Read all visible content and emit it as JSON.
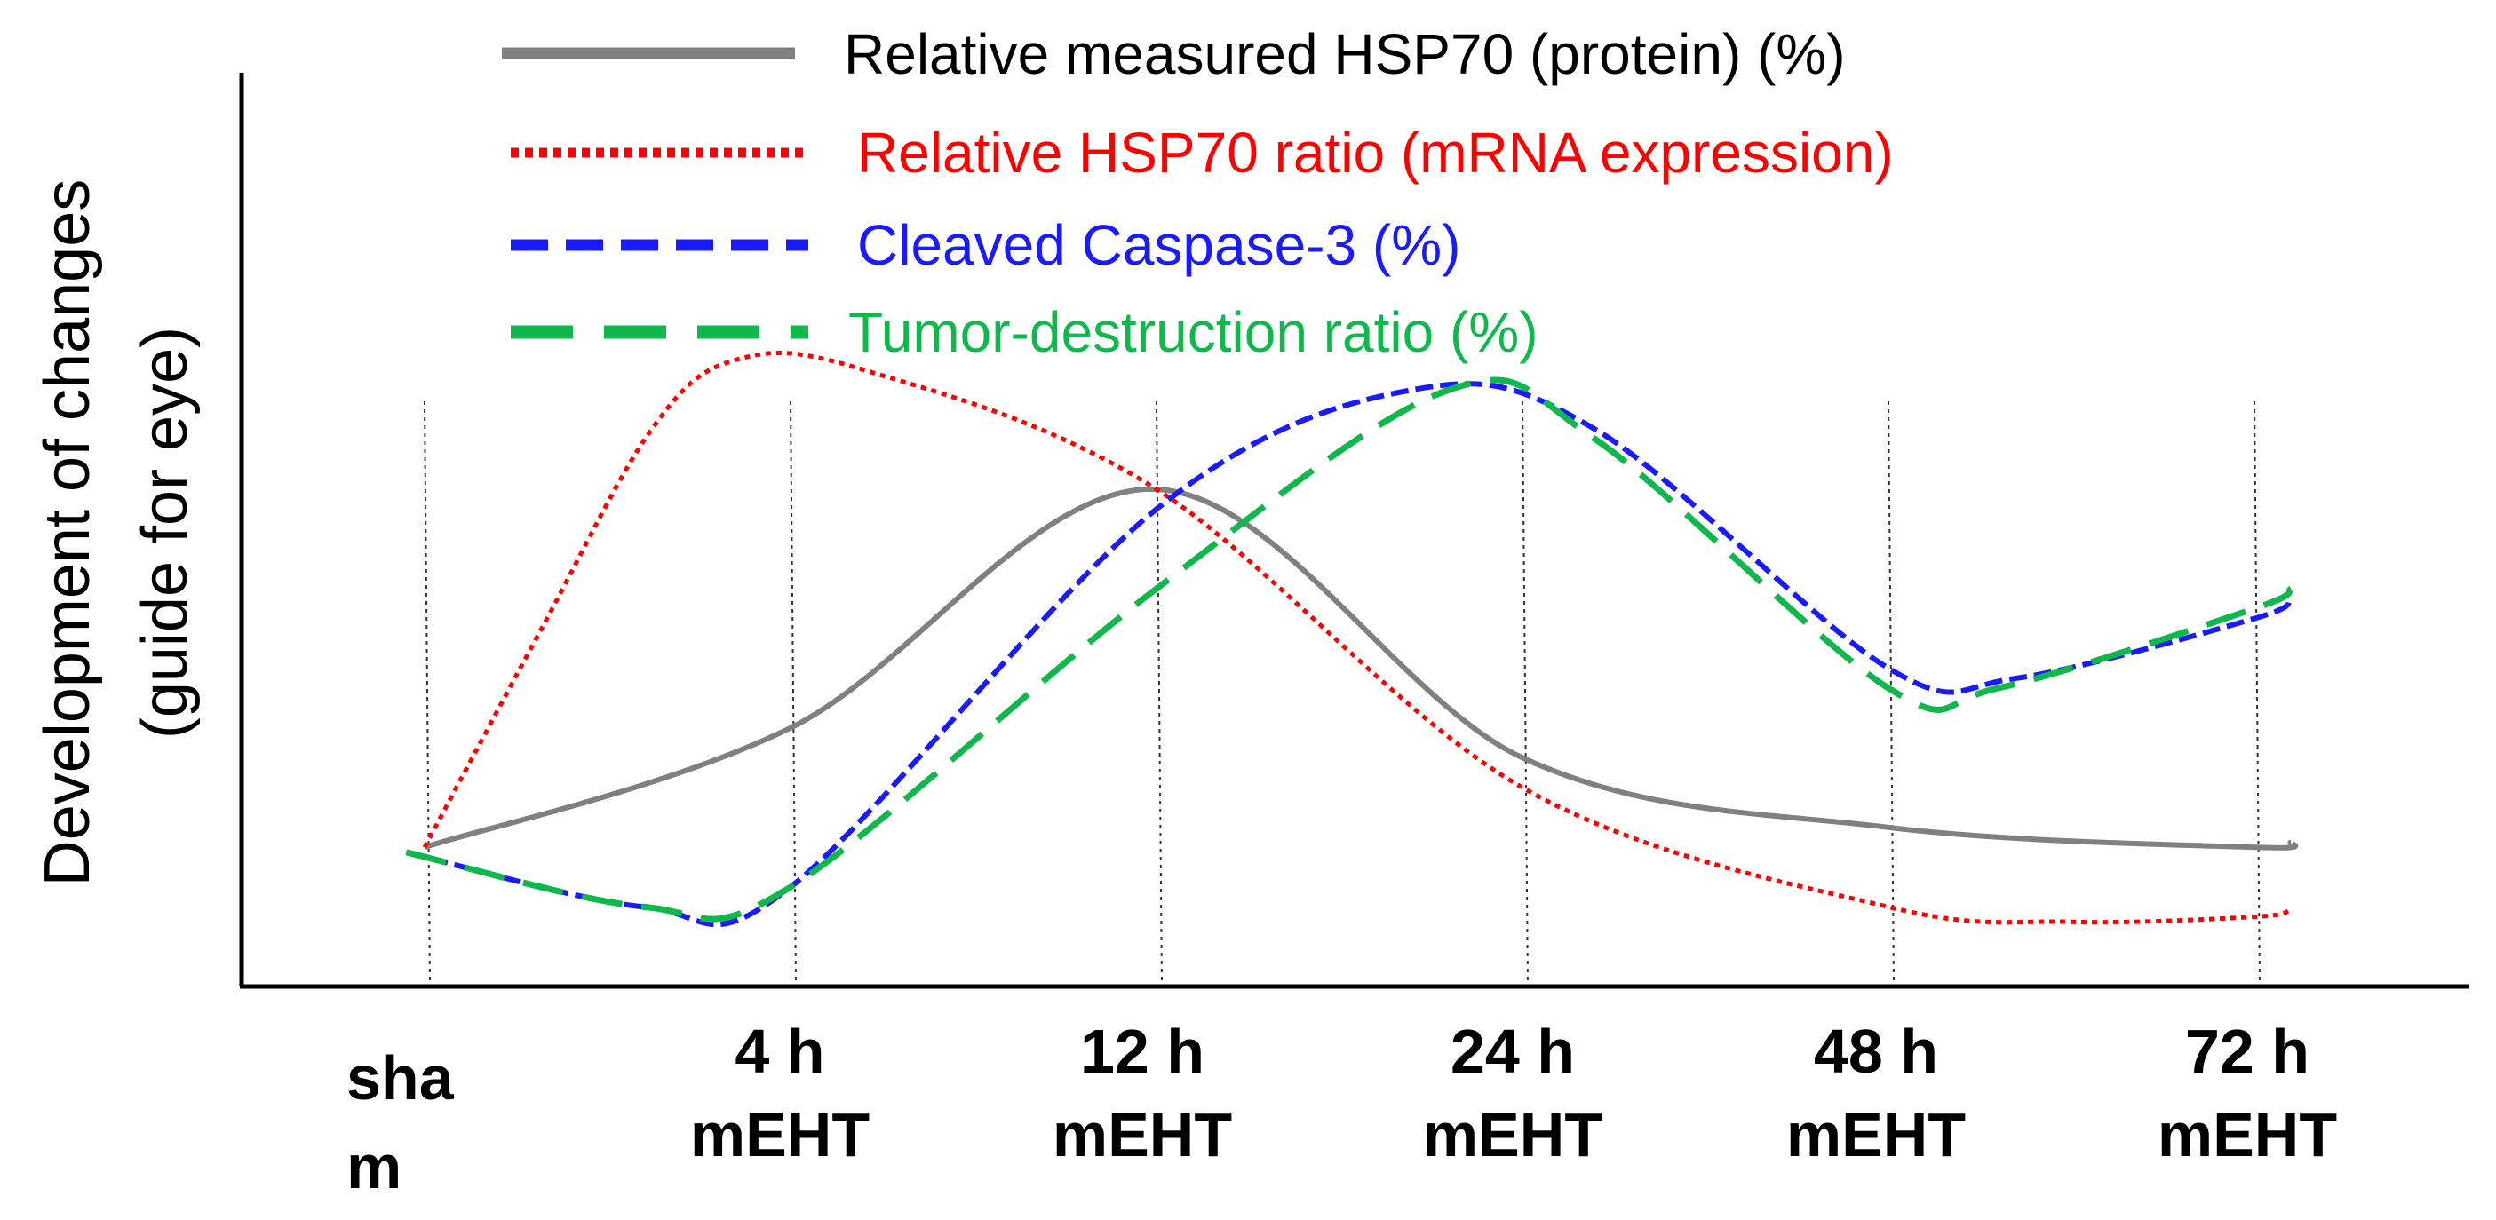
{
  "chart_data": {
    "type": "line",
    "ylabel_lines": [
      "Development  of changes",
      "(guide for eye)"
    ],
    "ylabel": "Development  of changes (guide for eye)",
    "xlabel": "",
    "categories": [
      [
        "sha",
        "m"
      ],
      [
        "4 h",
        "mEHT"
      ],
      [
        "12 h",
        "mEHT"
      ],
      [
        "24 h",
        "mEHT"
      ],
      [
        "48 h",
        "mEHT"
      ],
      [
        "72 h",
        "mEHT"
      ]
    ],
    "x": [
      0,
      1,
      2,
      3,
      4,
      5
    ],
    "xlim": [
      -0.5,
      5.6
    ],
    "ylim": [
      0,
      100
    ],
    "grid": "vertical dotted lines at each time point",
    "legend_position": "top",
    "series": [
      {
        "name": "Relative measured HSP70 (protein) (%)",
        "color": "#808080",
        "style": "solid",
        "points": [
          [
            0,
            14
          ],
          [
            1,
            26
          ],
          [
            2,
            50
          ],
          [
            3,
            23
          ],
          [
            4,
            16
          ],
          [
            5,
            14
          ],
          [
            5.1,
            14.5
          ]
        ]
      },
      {
        "name": "Relative HSP70 ratio (mRNA  expression)",
        "color": "#ff0000",
        "style": "dotted",
        "points": [
          [
            0,
            14
          ],
          [
            0.32,
            36
          ],
          [
            0.62,
            56
          ],
          [
            0.85,
            63
          ],
          [
            1.2,
            62
          ],
          [
            2,
            50
          ],
          [
            3,
            20
          ],
          [
            4,
            8
          ],
          [
            4.5,
            6.5
          ],
          [
            5,
            7
          ],
          [
            5.1,
            7.7
          ]
        ]
      },
      {
        "name": "Cleaved Caspase-3 (%)",
        "color": "#1a1aff",
        "style": "dashed",
        "points": [
          [
            -0.05,
            13.5
          ],
          [
            0.6,
            8
          ],
          [
            1,
            10
          ],
          [
            2,
            48
          ],
          [
            2.7,
            60
          ],
          [
            3.2,
            56
          ],
          [
            4,
            32
          ],
          [
            4.35,
            31
          ],
          [
            5,
            37
          ],
          [
            5.1,
            39
          ]
        ]
      },
      {
        "name": "Tumor-destruction ratio (%)",
        "color": "#0fb84b",
        "style": "long-dashed",
        "points": [
          [
            -0.05,
            13.5
          ],
          [
            0.6,
            8
          ],
          [
            1,
            10
          ],
          [
            2,
            40
          ],
          [
            2.8,
            60
          ],
          [
            3.2,
            55
          ],
          [
            4,
            30
          ],
          [
            4.3,
            30
          ],
          [
            5,
            38
          ],
          [
            5.1,
            40
          ]
        ]
      }
    ]
  }
}
